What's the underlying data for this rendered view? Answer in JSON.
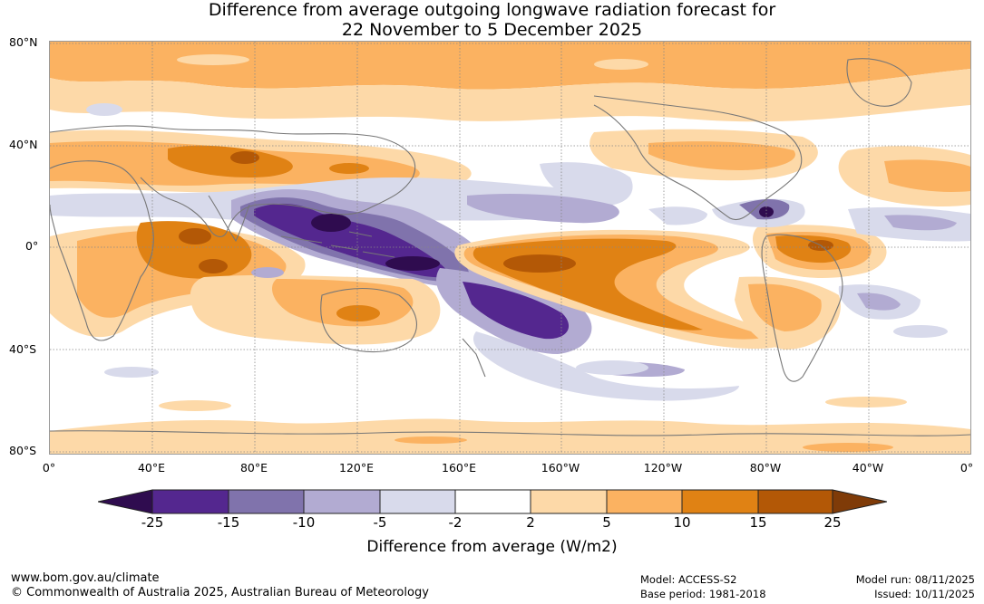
{
  "title": {
    "line1": "Difference from average outgoing longwave radiation forecast for",
    "line2": "22 November to 5 December 2025"
  },
  "axes": {
    "lat_labels": [
      "80°N",
      "40°N",
      "0°",
      "40°S",
      "80°S"
    ],
    "lon_labels": [
      "0°",
      "40°E",
      "80°E",
      "120°E",
      "160°E",
      "160°W",
      "120°W",
      "80°W",
      "40°W",
      "0°"
    ]
  },
  "colorbar": {
    "title": "Difference from average (W/m2)",
    "ticks": [
      "-25",
      "-15",
      "-10",
      "-5",
      "-2",
      "2",
      "5",
      "10",
      "15",
      "25"
    ],
    "colors": [
      "#2f0c4f",
      "#54278f",
      "#8073ac",
      "#b2abd2",
      "#d8daeb",
      "#ffffff",
      "#fdd9a8",
      "#fbb261",
      "#e08214",
      "#b35806",
      "#7f3b08"
    ]
  },
  "footer": {
    "url": "www.bom.gov.au/climate",
    "copyright": "© Commonwealth of Australia 2025, Australian Bureau of Meteorology",
    "model": "Model: ACCESS-S2",
    "base_period": "Base period: 1981-2018",
    "model_run": "Model run: 08/11/2025",
    "issued": "Issued: 10/11/2025"
  }
}
